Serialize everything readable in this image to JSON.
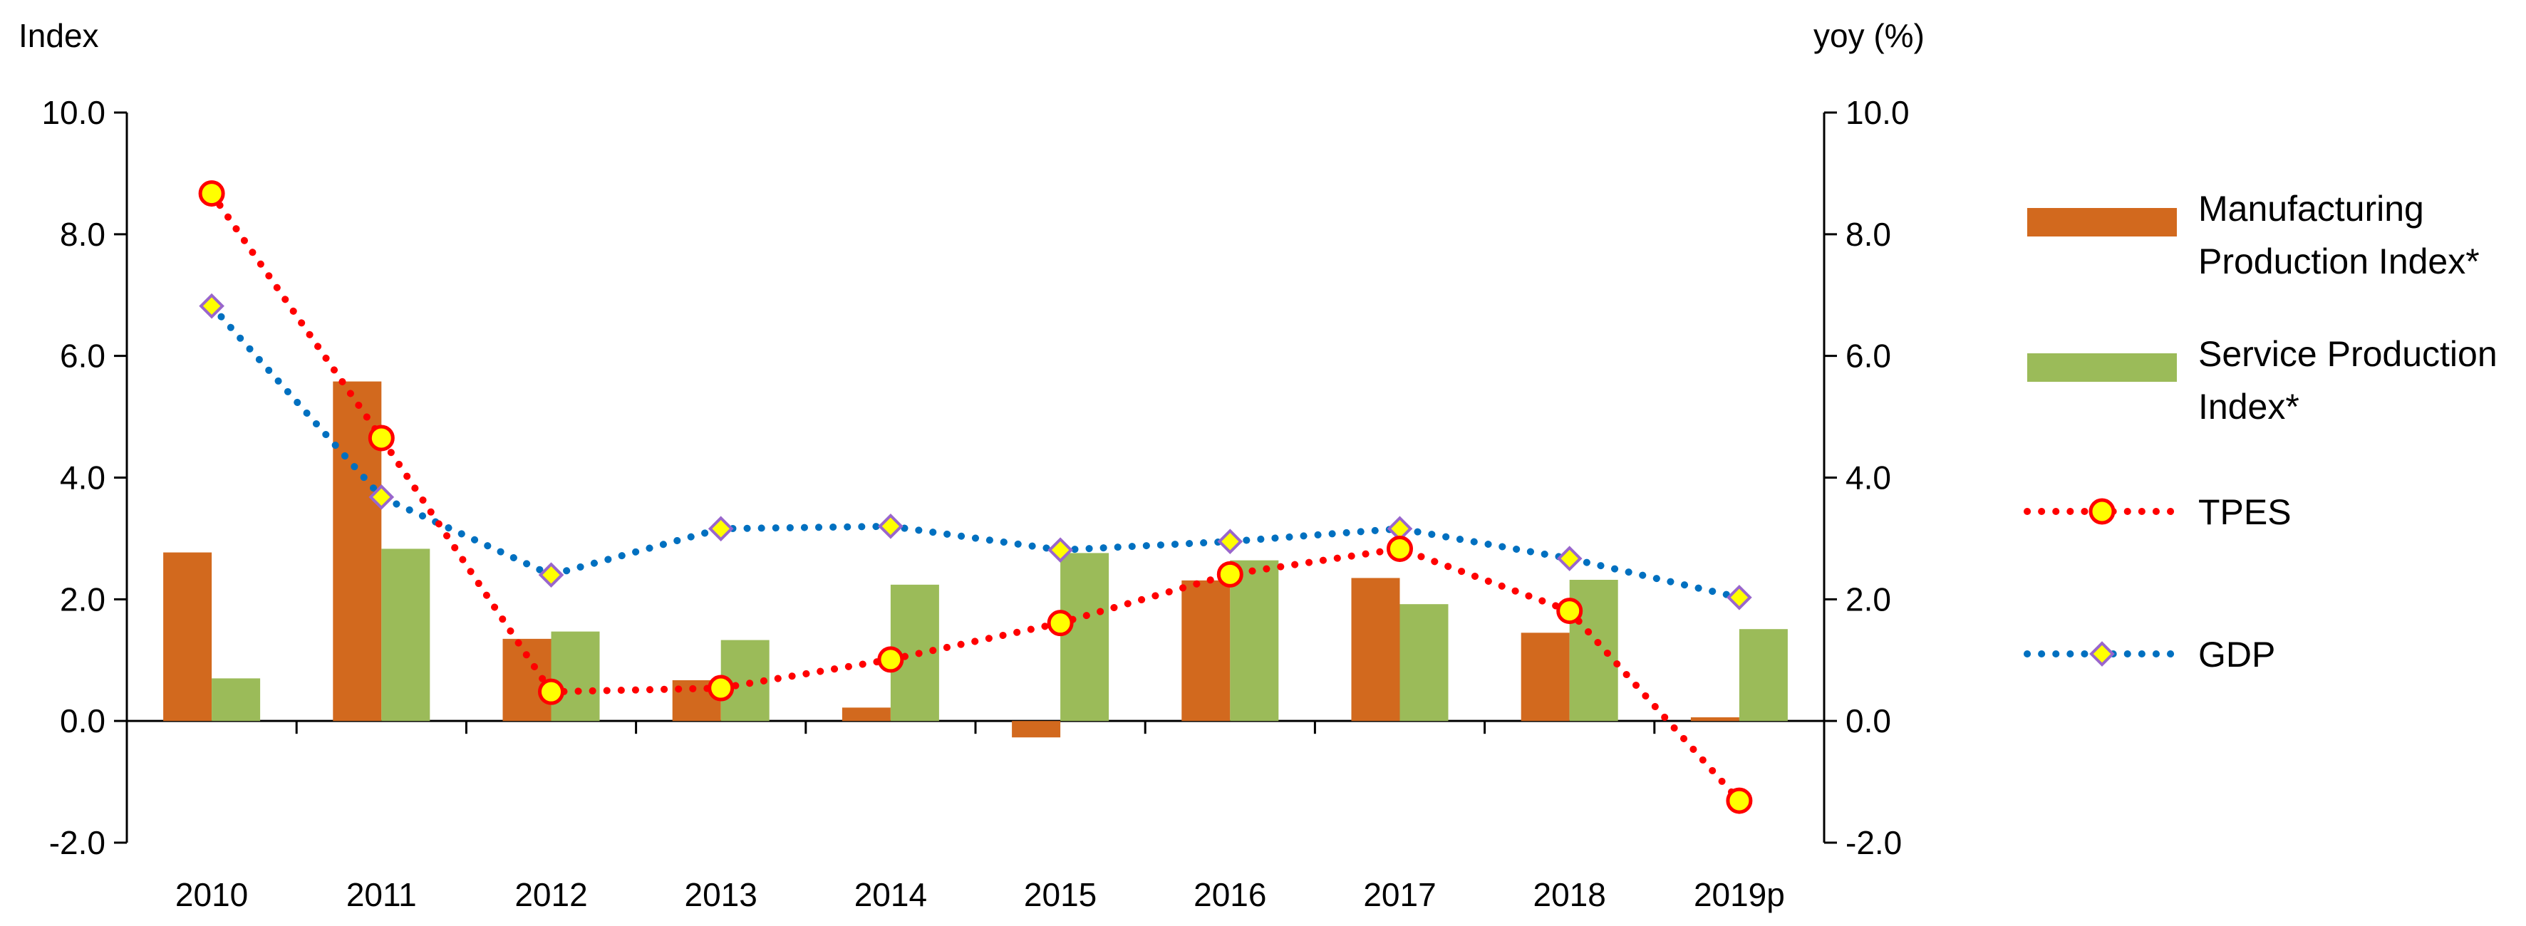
{
  "chart_data": {
    "type": "bar",
    "categories": [
      "2010",
      "2011",
      "2012",
      "2013",
      "2014",
      "2015",
      "2016",
      "2017",
      "2018",
      "2019p"
    ],
    "left_axis": {
      "unit": "Index",
      "ylim": [
        -2,
        10
      ],
      "ticks": [
        "-2.0",
        "0.0",
        "2.0",
        "4.0",
        "6.0",
        "8.0",
        "10.0"
      ]
    },
    "right_axis": {
      "unit": "yoy (%)",
      "ylim": [
        -2,
        10
      ],
      "ticks": [
        "-2.0",
        "0.0",
        "2.0",
        "4.0",
        "6.0",
        "8.0",
        "10.0"
      ]
    },
    "series": [
      {
        "name": "Manufacturing Production Index*",
        "legend_lines": [
          "Manufacturing",
          "Production Index*"
        ],
        "kind": "bar",
        "axis": "left",
        "color": "#D2691E",
        "values": [
          2.77,
          5.58,
          1.35,
          0.67,
          0.22,
          -0.27,
          2.31,
          2.35,
          1.45,
          0.06
        ]
      },
      {
        "name": "Service Production Index*",
        "legend_lines": [
          "Service Production",
          "Index*"
        ],
        "kind": "bar",
        "axis": "left",
        "color": "#9BBB59",
        "values": [
          0.7,
          2.83,
          1.47,
          1.33,
          2.24,
          2.76,
          2.64,
          1.92,
          2.32,
          1.51
        ]
      },
      {
        "name": "TPES",
        "legend_lines": [
          "TPES"
        ],
        "kind": "line",
        "axis": "right",
        "color": "#FF0000",
        "marker": "circle",
        "marker_fill": "#FFFF00",
        "values": [
          8.67,
          4.65,
          0.48,
          0.54,
          1.01,
          1.61,
          2.41,
          2.83,
          1.81,
          -1.31
        ]
      },
      {
        "name": "GDP",
        "legend_lines": [
          "GDP"
        ],
        "kind": "line",
        "axis": "right",
        "color": "#0070C0",
        "marker": "diamond",
        "marker_fill": "#FFFF00",
        "marker_stroke": "#9966CC",
        "values": [
          6.82,
          3.68,
          2.4,
          3.16,
          3.2,
          2.81,
          2.95,
          3.16,
          2.67,
          2.03
        ]
      }
    ],
    "grid": false,
    "legend_position": "right"
  }
}
